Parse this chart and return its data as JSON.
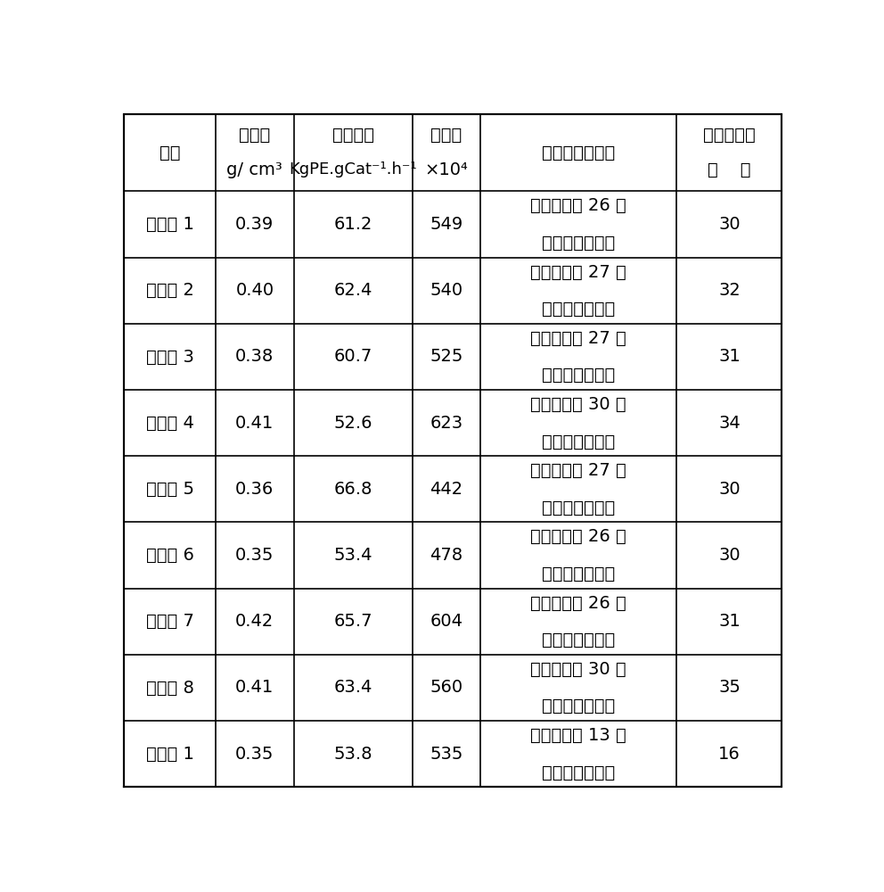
{
  "rows": [
    {
      "id": "实施例 1",
      "density": "0.39",
      "activity": "61.2",
      "mw": "549",
      "phenomenon_line1": "聚合釜运行 26 天",
      "phenomenon_line2": "后出现结块现象",
      "period": "30"
    },
    {
      "id": "实施例 2",
      "density": "0.40",
      "activity": "62.4",
      "mw": "540",
      "phenomenon_line1": "聚合釜运行 27 天",
      "phenomenon_line2": "后出现结块现象",
      "period": "32"
    },
    {
      "id": "实施例 3",
      "density": "0.38",
      "activity": "60.7",
      "mw": "525",
      "phenomenon_line1": "聚合釜运行 27 天",
      "phenomenon_line2": "后出现结块现象",
      "period": "31"
    },
    {
      "id": "实施例 4",
      "density": "0.41",
      "activity": "52.6",
      "mw": "623",
      "phenomenon_line1": "聚合釜运行 30 天",
      "phenomenon_line2": "后出现结块现象",
      "period": "34"
    },
    {
      "id": "实施例 5",
      "density": "0.36",
      "activity": "66.8",
      "mw": "442",
      "phenomenon_line1": "聚合釜运行 27 天",
      "phenomenon_line2": "后出现结块现象",
      "period": "30"
    },
    {
      "id": "实施例 6",
      "density": "0.35",
      "activity": "53.4",
      "mw": "478",
      "phenomenon_line1": "聚合釜运行 26 天",
      "phenomenon_line2": "后出现结块现象",
      "period": "30"
    },
    {
      "id": "实施例 7",
      "density": "0.42",
      "activity": "65.7",
      "mw": "604",
      "phenomenon_line1": "聚合釜运行 26 天",
      "phenomenon_line2": "后出现结块现象",
      "period": "31"
    },
    {
      "id": "实施例 8",
      "density": "0.41",
      "activity": "63.4",
      "mw": "560",
      "phenomenon_line1": "聚合釜运行 30 天",
      "phenomenon_line2": "后出现结块现象",
      "period": "35"
    },
    {
      "id": "对比例 1",
      "density": "0.35",
      "activity": "53.8",
      "mw": "535",
      "phenomenon_line1": "聚合釜运行 13 天",
      "phenomenon_line2": "后出现结块现象",
      "period": "16"
    }
  ],
  "header_col0_line1": "编号",
  "header_col1_line1": "堆密度",
  "header_col1_line2": "g/ cm³",
  "header_col2_line1": "聚合活性",
  "header_col2_line2": "KgPE.gCat⁻¹.h⁻¹",
  "header_col3_line1": "分子量",
  "header_col3_line2": "×10⁴",
  "header_col4_line1": "聚合釜结块现象",
  "header_col5_line1": "装置运行周",
  "header_col5_line2": "期    天",
  "bg_color": "#ffffff",
  "line_color": "#000000",
  "text_color": "#000000",
  "font_size": 14,
  "header_font_size": 14
}
